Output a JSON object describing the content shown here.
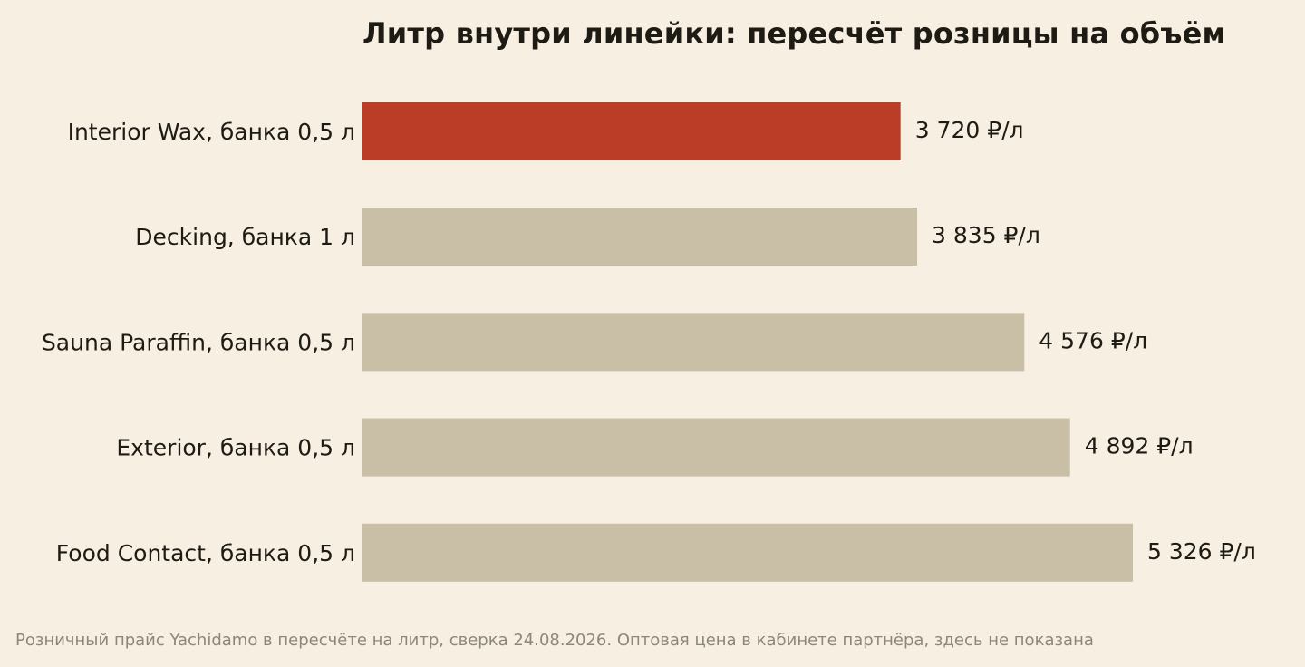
{
  "footnote": "Розничный прайс Yachidamo в пересчёте на литр, сверка 24.08.2026. Оптовая цена в кабинете партнёра, здесь не показана",
  "chart_data": {
    "type": "bar",
    "orientation": "horizontal",
    "title": "Литр внутри линейки: пересчёт розницы на объём",
    "categories": [
      "Interior Wax, банка 0,5 л",
      "Decking, банка 1 л",
      "Sauna Paraffin, банка 0,5 л",
      "Exterior, банка 0,5 л",
      "Food Contact, банка 0,5 л"
    ],
    "values": [
      3720,
      3835,
      4576,
      4892,
      5326
    ],
    "value_labels": [
      "3 720 ₽/л",
      "3 835 ₽/л",
      "4 576 ₽/л",
      "4 892 ₽/л",
      "5 326 ₽/л"
    ],
    "highlight_index": 0,
    "xlim": [
      0,
      5326
    ],
    "grid": false,
    "colors": {
      "highlight": "#bc3d27",
      "default": "#c9bfa6",
      "text": "#1e1b14",
      "background": "#f6efe2"
    }
  }
}
